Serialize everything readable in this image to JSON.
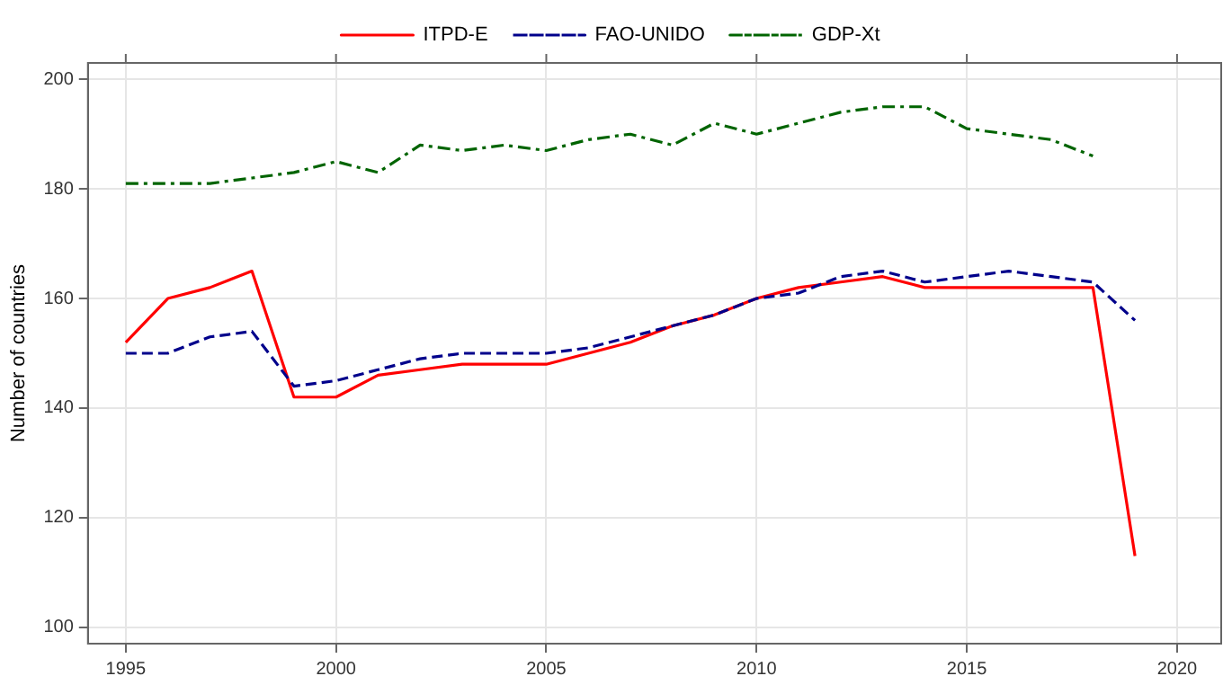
{
  "chart_data": {
    "type": "line",
    "ylabel": "Number of countries",
    "x": [
      1995,
      1996,
      1997,
      1998,
      1999,
      2000,
      2001,
      2002,
      2003,
      2004,
      2005,
      2006,
      2007,
      2008,
      2009,
      2010,
      2011,
      2012,
      2013,
      2014,
      2015,
      2016,
      2017,
      2018,
      2019
    ],
    "series": [
      {
        "name": "ITPD-E",
        "color": "#ff0000",
        "line_style": "solid",
        "values": [
          152,
          160,
          162,
          165,
          142,
          142,
          146,
          147,
          148,
          148,
          148,
          150,
          152,
          155,
          157,
          160,
          162,
          163,
          164,
          162,
          162,
          162,
          162,
          162,
          113
        ]
      },
      {
        "name": "FAO-UNIDO",
        "color": "#00008b",
        "line_style": "dashed",
        "values": [
          150,
          150,
          153,
          154,
          144,
          145,
          147,
          149,
          150,
          150,
          150,
          151,
          153,
          155,
          157,
          160,
          161,
          164,
          165,
          163,
          164,
          165,
          164,
          163,
          156
        ]
      },
      {
        "name": "GDP-Xt",
        "color": "#006400",
        "line_style": "dashdot",
        "values": [
          181,
          181,
          181,
          182,
          183,
          185,
          183,
          188,
          187,
          188,
          187,
          189,
          190,
          188,
          192,
          190,
          192,
          194,
          195,
          195,
          191,
          190,
          189,
          186,
          null
        ]
      }
    ],
    "xlim": [
      1994.1,
      2021.05
    ],
    "xticks": [
      1995,
      2000,
      2005,
      2010,
      2015,
      2020
    ],
    "ylim": [
      97,
      203
    ],
    "yticks": [
      100,
      120,
      140,
      160,
      180,
      200
    ],
    "grid": true,
    "legend": "top",
    "marker": "none"
  }
}
